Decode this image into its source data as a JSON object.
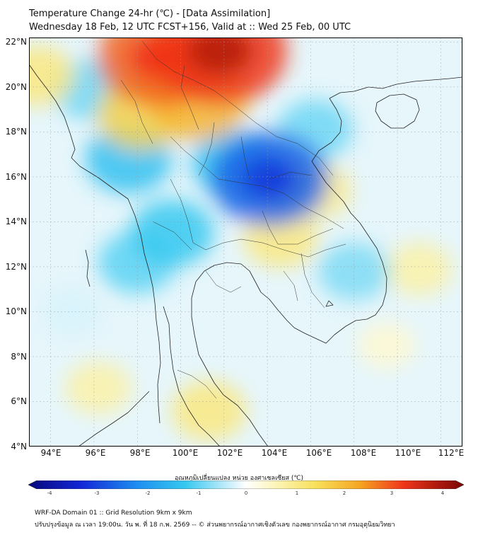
{
  "title": {
    "line1": "Temperature Change 24-hr (℃) - [Data Assimilation]",
    "line2": "Wednesday 18 Feb, 12 UTC FCST+156, Valid at :: Wed 25 Feb, 00 UTC"
  },
  "axes": {
    "lat_labels": [
      "22°N",
      "20°N",
      "18°N",
      "16°N",
      "14°N",
      "12°N",
      "10°N",
      "8°N",
      "6°N",
      "4°N"
    ],
    "lat_values": [
      22,
      20,
      18,
      16,
      14,
      12,
      10,
      8,
      6,
      4
    ],
    "lon_labels": [
      "94°E",
      "96°E",
      "98°E",
      "100°E",
      "102°E",
      "104°E",
      "106°E",
      "108°E",
      "110°E",
      "112°E"
    ],
    "lon_values": [
      94,
      96,
      98,
      100,
      102,
      104,
      106,
      108,
      110,
      112
    ],
    "lon_range": [
      93,
      113
    ],
    "lat_range": [
      4,
      22.2
    ]
  },
  "colorbar": {
    "label": "อุณหภูมิเปลี่ยนแปลง หน่วย องศาเซลเซียส (℃)",
    "ticks": [
      "-4",
      "-3",
      "-2",
      "-1",
      "0",
      "1",
      "2",
      "3",
      "4"
    ],
    "tick_values": [
      -4,
      -3,
      -2,
      -1,
      0,
      1,
      2,
      3,
      4
    ],
    "range": [
      -4,
      4
    ]
  },
  "field": {
    "description_values_in_celsius": true,
    "anomalies": [
      {
        "lon": 101.8,
        "lat": 21.6,
        "value": 3.0
      },
      {
        "lon": 99.0,
        "lat": 21.3,
        "value": 2.6
      },
      {
        "lon": 100.8,
        "lat": 19.4,
        "value": 1.8
      },
      {
        "lon": 98.2,
        "lat": 18.8,
        "value": 1.4
      },
      {
        "lon": 104.1,
        "lat": 15.9,
        "value": -2.4
      },
      {
        "lon": 102.5,
        "lat": 16.6,
        "value": -1.3
      },
      {
        "lon": 97.6,
        "lat": 16.8,
        "value": -1.3
      },
      {
        "lon": 99.6,
        "lat": 13.5,
        "value": -1.2
      },
      {
        "lon": 98.0,
        "lat": 12.2,
        "value": -1.0
      },
      {
        "lon": 95.8,
        "lat": 19.9,
        "value": -0.9
      },
      {
        "lon": 106.2,
        "lat": 18.1,
        "value": -0.9
      },
      {
        "lon": 104.6,
        "lat": 13.3,
        "value": 0.9
      },
      {
        "lon": 106.2,
        "lat": 15.4,
        "value": 0.8
      },
      {
        "lon": 108.0,
        "lat": 11.8,
        "value": -0.8
      },
      {
        "lon": 101.3,
        "lat": 5.6,
        "value": 0.9
      },
      {
        "lon": 96.2,
        "lat": 6.6,
        "value": 0.6
      },
      {
        "lon": 111.0,
        "lat": 11.9,
        "value": 0.6
      },
      {
        "lon": 93.4,
        "lat": 20.5,
        "value": 0.9
      },
      {
        "lon": 109.5,
        "lat": 8.5,
        "value": 0.3
      },
      {
        "lon": 95.0,
        "lat": 10.0,
        "value": -0.3
      }
    ]
  },
  "footer": {
    "line1": "WRF-DA Domain 01 :: Grid Resolution 9km x 9km",
    "line2": "ปรับปรุงข้อมูล ณ เวลา 19:00น. วัน พ. ที่ 18 ก.พ. 2569 -- © ส่วนพยากรณ์อากาศเชิงตัวเลข กองพยากรณ์อากาศ กรมอุตุนิยมวิทยา"
  },
  "colors": {
    "cold_extreme": "#0a0a8c",
    "neutral": "#ffffff",
    "warm_extreme": "#8c0a0a",
    "boundaries": "#222222"
  }
}
